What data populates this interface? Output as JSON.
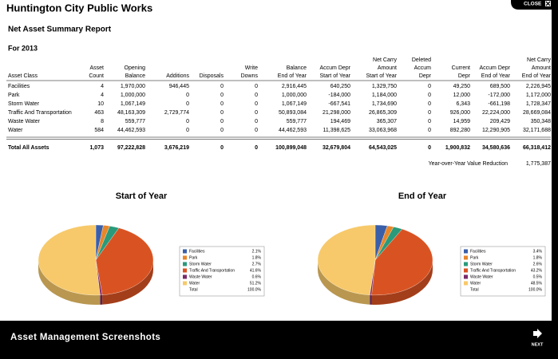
{
  "header": {
    "close": "CLOSE",
    "title": "Huntington City Public Works",
    "report": "Net Asset Summary Report",
    "period": "For 2013"
  },
  "table": {
    "columns": [
      [
        "Asset Class"
      ],
      [
        "Asset",
        "Count"
      ],
      [
        "Opening",
        "Balance"
      ],
      [
        "Additions"
      ],
      [
        "Disposals"
      ],
      [
        "Write",
        "Downs"
      ],
      [
        "Balance",
        "End of Year"
      ],
      [
        "Accum Depr",
        "Start of Year"
      ],
      [
        "Net Carry",
        "Amount",
        "Start of Year"
      ],
      [
        "Deleted",
        "Accum",
        "Depr"
      ],
      [
        "Current",
        "Depr"
      ],
      [
        "Accum Depr",
        "End of Year"
      ],
      [
        "Net Carry",
        "Amount",
        "End of Year"
      ]
    ],
    "rows": [
      [
        "Facilities",
        "4",
        "1,970,000",
        "946,445",
        "0",
        "0",
        "2,916,445",
        "640,250",
        "1,329,750",
        "0",
        "49,250",
        "689,500",
        "2,226,945"
      ],
      [
        "Park",
        "4",
        "1,000,000",
        "0",
        "0",
        "0",
        "1,000,000",
        "-184,000",
        "1,184,000",
        "0",
        "12,000",
        "-172,000",
        "1,172,000"
      ],
      [
        "Storm Water",
        "10",
        "1,067,149",
        "0",
        "0",
        "0",
        "1,067,149",
        "-667,541",
        "1,734,690",
        "0",
        "6,343",
        "-661,198",
        "1,728,347"
      ],
      [
        "Traffic And Transportation",
        "463",
        "48,163,309",
        "2,729,774",
        "0",
        "0",
        "50,893,084",
        "21,298,000",
        "26,865,309",
        "0",
        "926,000",
        "22,224,000",
        "28,669,084"
      ],
      [
        "Waste Water",
        "8",
        "559,777",
        "0",
        "0",
        "0",
        "559,777",
        "194,469",
        "365,307",
        "0",
        "14,959",
        "209,429",
        "350,348"
      ],
      [
        "Water",
        "584",
        "44,462,593",
        "0",
        "0",
        "0",
        "44,462,593",
        "11,398,625",
        "33,063,968",
        "0",
        "892,280",
        "12,290,905",
        "32,171,688"
      ]
    ],
    "total": [
      "Total All Assets",
      "1,073",
      "97,222,828",
      "3,676,219",
      "0",
      "0",
      "100,899,048",
      "32,679,804",
      "64,543,025",
      "0",
      "1,900,832",
      "34,580,636",
      "66,318,412"
    ],
    "summary": [
      "Year-over-Year Value Reduction",
      "1,775,387"
    ]
  },
  "chart_data": [
    {
      "type": "pie",
      "title": "Start of Year",
      "categories": [
        "Facilities",
        "Park",
        "Storm Water",
        "Traffic And Transportation",
        "Waste Water",
        "Water"
      ],
      "values": [
        2.1,
        1.8,
        2.7,
        41.6,
        0.6,
        51.2
      ],
      "value_labels": [
        "2.1%",
        "1.8%",
        "2.7%",
        "41.6%",
        "0.6%",
        "51.2%"
      ],
      "colors": [
        "#3a5fa8",
        "#e8862a",
        "#2a9a7a",
        "#d95322",
        "#7a2a6a",
        "#f7c96a"
      ],
      "total_row": [
        "Total",
        "100.0%"
      ]
    },
    {
      "type": "pie",
      "title": "End of Year",
      "categories": [
        "Facilities",
        "Park",
        "Storm Water",
        "Traffic And Transportation",
        "Waste Water",
        "Water"
      ],
      "values": [
        3.4,
        1.8,
        2.6,
        43.2,
        0.5,
        48.5
      ],
      "value_labels": [
        "3.4%",
        "1.8%",
        "2.6%",
        "43.2%",
        "0.5%",
        "48.5%"
      ],
      "colors": [
        "#3a5fa8",
        "#e8862a",
        "#2a9a7a",
        "#d95322",
        "#7a2a6a",
        "#f7c96a"
      ],
      "total_row": [
        "Total",
        "100.0%"
      ]
    }
  ],
  "footer": {
    "caption": "Asset Management Screenshots",
    "next": "NEXT"
  }
}
